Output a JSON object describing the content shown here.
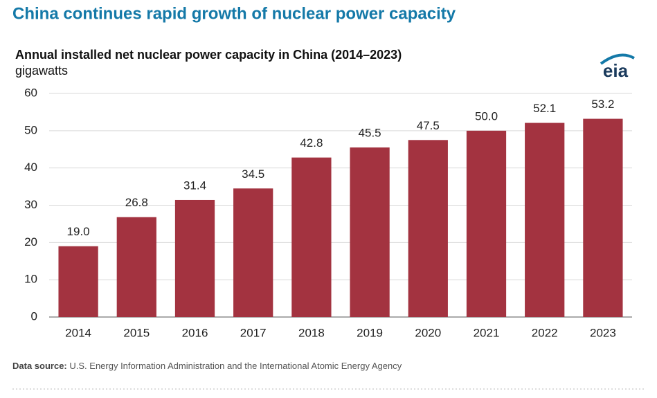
{
  "headline": "China continues rapid growth of nuclear power capacity",
  "logo": "eia",
  "source": {
    "label": "Data source:",
    "text": "U.S. Energy Information Administration and the International Atomic Energy Agency"
  },
  "chart_data": {
    "type": "bar",
    "title": "Annual installed net nuclear power capacity in China (2014–2023)",
    "y_label": "gigawatts",
    "categories": [
      "2014",
      "2015",
      "2016",
      "2017",
      "2018",
      "2019",
      "2020",
      "2021",
      "2022",
      "2023"
    ],
    "values": [
      19.0,
      26.8,
      31.4,
      34.5,
      42.8,
      45.5,
      47.5,
      50.0,
      52.1,
      53.2
    ],
    "value_labels": [
      "19.0",
      "26.8",
      "31.4",
      "34.5",
      "42.8",
      "45.5",
      "47.5",
      "50.0",
      "52.1",
      "53.2"
    ],
    "color": "#a33340",
    "ylim": [
      0,
      60
    ],
    "yticks": [
      0,
      10,
      20,
      30,
      40,
      50,
      60
    ],
    "grid": true
  }
}
